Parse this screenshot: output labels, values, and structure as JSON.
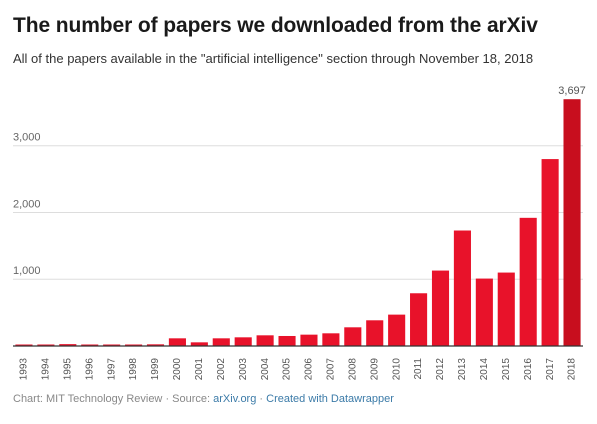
{
  "header": {
    "title": "The number of papers we downloaded from the arXiv",
    "subtitle": "All of the papers available in the \"artificial intelligence\" section through November 18, 2018"
  },
  "footer": {
    "chart_label": "Chart: MIT Technology Review",
    "sep1": " · ",
    "source_label": "Source: ",
    "source_link": "arXiv.org",
    "sep2": " · ",
    "created_with": "Created with Datawrapper"
  },
  "colors": {
    "bar": "#e8122a",
    "bar_highlight": "#c80e1e",
    "grid": "#dddddd",
    "baseline": "#333333"
  },
  "chart_data": {
    "type": "bar",
    "title": "The number of papers we downloaded from the arXiv",
    "subtitle": "All of the papers available in the \"artificial intelligence\" section through November 18, 2018",
    "xlabel": "",
    "ylabel": "",
    "categories": [
      "1993",
      "1994",
      "1995",
      "1996",
      "1997",
      "1998",
      "1999",
      "2000",
      "2001",
      "2002",
      "2003",
      "2004",
      "2005",
      "2006",
      "2007",
      "2008",
      "2009",
      "2010",
      "2011",
      "2012",
      "2013",
      "2014",
      "2015",
      "2016",
      "2017",
      "2018"
    ],
    "values": [
      5,
      12,
      28,
      22,
      10,
      20,
      25,
      115,
      55,
      115,
      130,
      160,
      150,
      170,
      190,
      280,
      385,
      470,
      790,
      1130,
      1730,
      1010,
      1100,
      1920,
      2800,
      3697
    ],
    "ylim": [
      0,
      3700
    ],
    "yticks": [
      1000,
      2000,
      3000
    ],
    "ytick_labels": [
      "1,000",
      "2,000",
      "3,000"
    ],
    "grid": true,
    "highlight": {
      "category": "2018",
      "label": "3,697"
    }
  }
}
